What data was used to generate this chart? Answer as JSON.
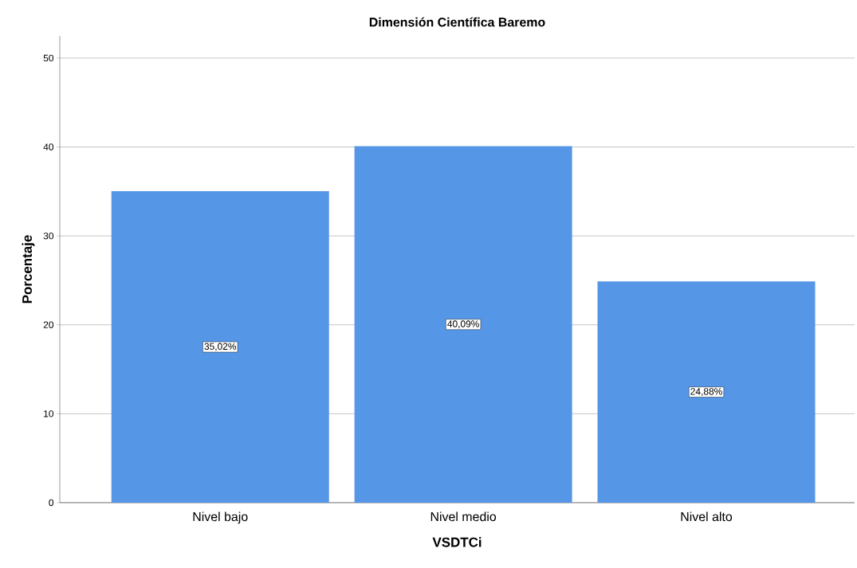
{
  "chart_data": {
    "type": "bar",
    "title": "Dimensión Científica Baremo",
    "xlabel": "VSDTCi",
    "ylabel": "Porcentaje",
    "categories": [
      "Nivel bajo",
      "Nivel medio",
      "Nivel alto"
    ],
    "values": [
      35.02,
      40.09,
      24.88
    ],
    "value_labels": [
      "35,02%",
      "40,09%",
      "24,88%"
    ],
    "color": "#5596e6",
    "ylim": [
      0,
      52.5
    ],
    "yticks": [
      0,
      10,
      20,
      30,
      40,
      50
    ],
    "grid": "y"
  }
}
